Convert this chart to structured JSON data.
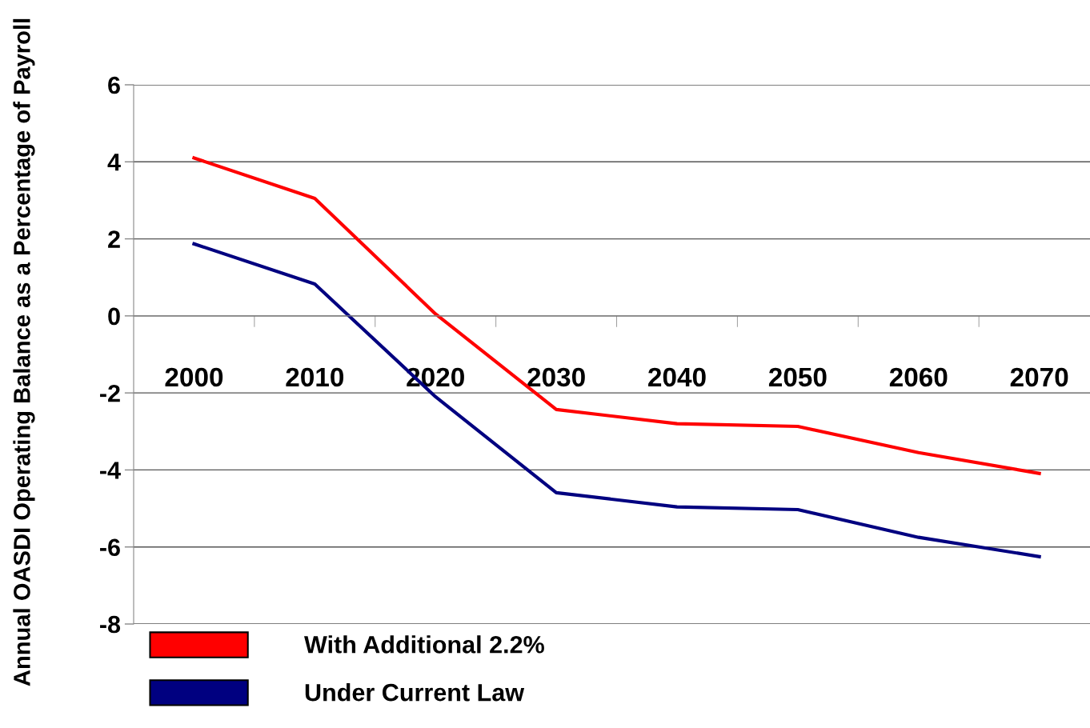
{
  "chart_data": {
    "type": "line",
    "ylabel": "Annual OASDI Operating Balance as a Percentage of Payroll",
    "categories": [
      "2000",
      "2010",
      "2020",
      "2030",
      "2040",
      "2050",
      "2060",
      "2070"
    ],
    "series": [
      {
        "name": "With Additional 2.2%",
        "color": "#ff0000",
        "values": [
          4.1,
          3.05,
          0.05,
          -2.43,
          -2.8,
          -2.87,
          -3.55,
          -4.09
        ]
      },
      {
        "name": "Under Current Law",
        "color": "#000080",
        "values": [
          1.87,
          0.83,
          -2.1,
          -4.59,
          -4.96,
          -5.03,
          -5.75,
          -6.25
        ]
      }
    ],
    "ylim": [
      -8,
      6
    ],
    "yticks": [
      -8,
      -6,
      -4,
      -2,
      0,
      2,
      4,
      6
    ],
    "grid": "y",
    "legend": "bottom",
    "marker": "none",
    "line_style": "solid"
  }
}
